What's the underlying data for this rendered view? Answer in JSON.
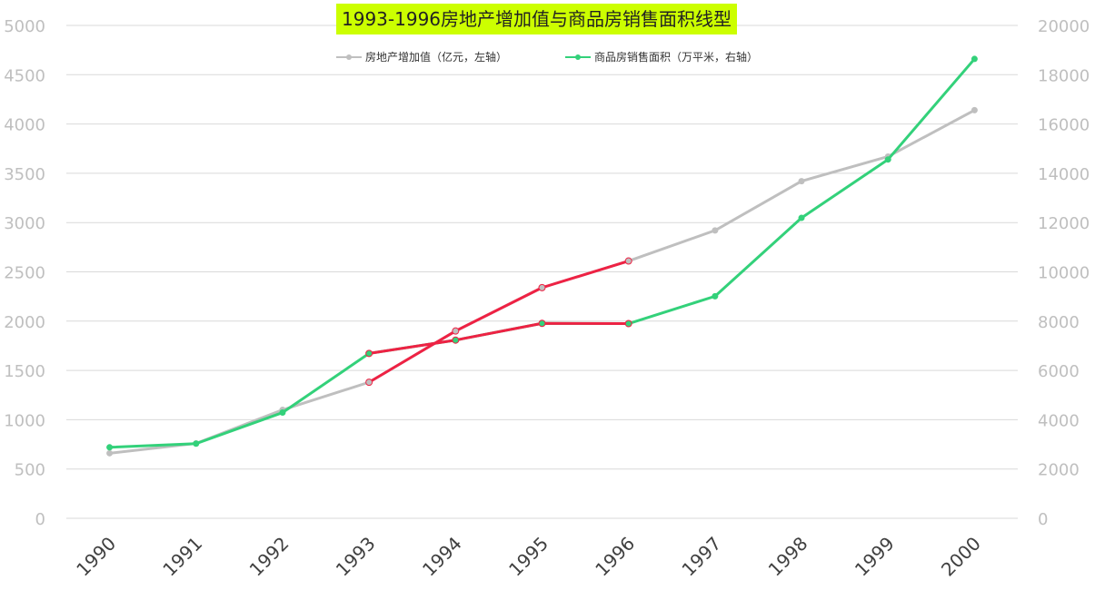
{
  "chart_data": {
    "type": "line",
    "title": "1993-1996房地产增加值与商品房销售面积线型",
    "x": [
      "1990",
      "1991",
      "1992",
      "1993",
      "1994",
      "1995",
      "1996",
      "1997",
      "1998",
      "1999",
      "2000"
    ],
    "y_left": {
      "min": 0,
      "max": 5000,
      "step": 500,
      "ticks": [
        "0",
        "500",
        "1000",
        "1500",
        "2000",
        "2500",
        "3000",
        "3500",
        "4000",
        "4500",
        "5000"
      ]
    },
    "y_right": {
      "min": 0,
      "max": 20000,
      "step": 2000,
      "ticks": [
        "0",
        "2000",
        "4000",
        "6000",
        "8000",
        "10000",
        "12000",
        "14000",
        "16000",
        "18000",
        "20000"
      ]
    },
    "grid": true,
    "legend_position": "top",
    "series": [
      {
        "name": "房地产增加值（亿元，左轴）",
        "axis": "left",
        "color": "#bfbfbf",
        "values": [
          660,
          760,
          1100,
          1380,
          1900,
          2340,
          2610,
          2920,
          3420,
          3670,
          4140
        ]
      },
      {
        "name": "商品房销售面积（万平米，右轴）",
        "axis": "right",
        "color": "#33d17a",
        "values": [
          2880,
          3030,
          4290,
          6690,
          7230,
          7910,
          7900,
          9010,
          12190,
          14560,
          18640
        ]
      }
    ],
    "highlight": {
      "color": "#ee2244",
      "from": "1993",
      "to": "1996"
    }
  }
}
